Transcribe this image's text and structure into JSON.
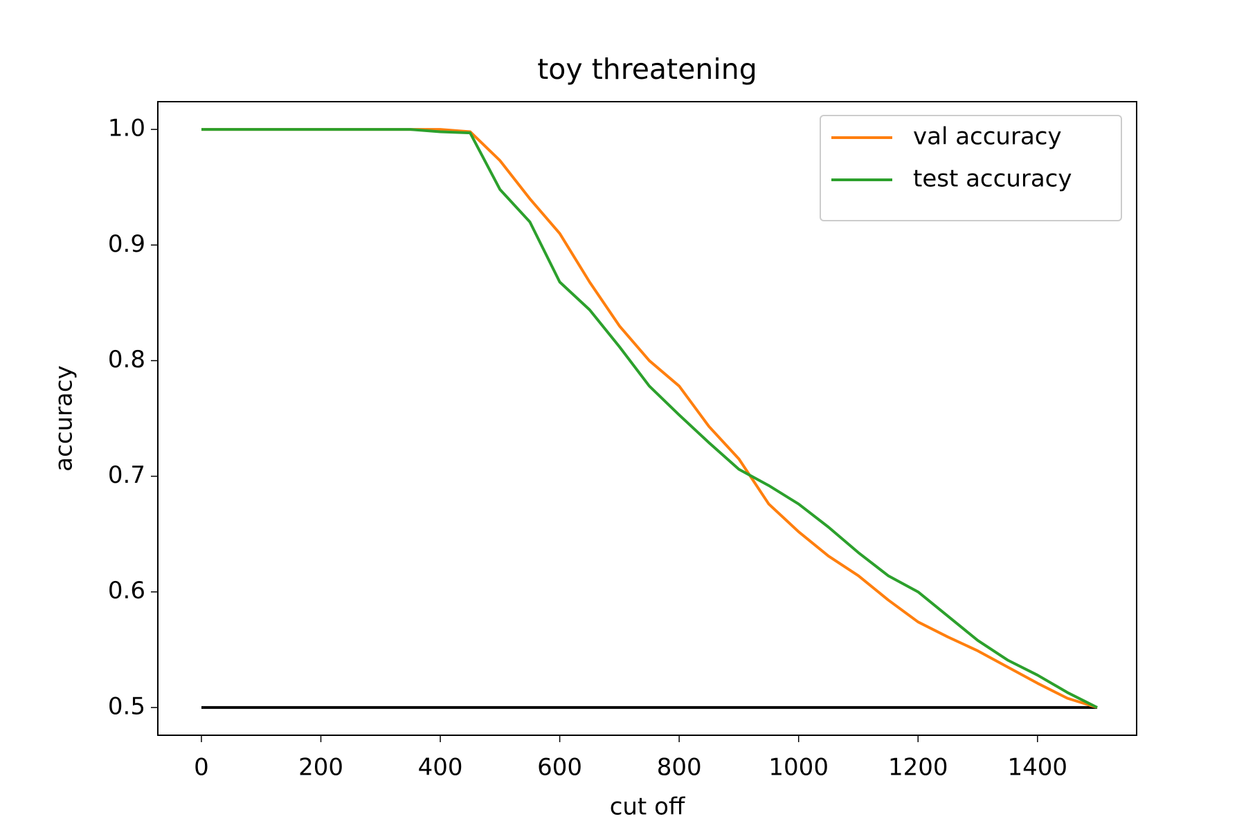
{
  "chart_data": {
    "type": "line",
    "title": "toy threatening",
    "xlabel": "cut off",
    "ylabel": "accuracy",
    "xlim": [
      -73,
      1566
    ],
    "ylim": [
      0.476,
      1.024
    ],
    "xticks": [
      0,
      200,
      400,
      600,
      800,
      1000,
      1200,
      1400
    ],
    "yticks": [
      0.5,
      0.6,
      0.7,
      0.8,
      0.9,
      {
        "value": 1,
        "label": "1.0"
      }
    ],
    "legend": "upper right",
    "series": [
      {
        "name": "val accuracy",
        "color": "#ff7f0e",
        "x": [
          0,
          50,
          100,
          150,
          200,
          250,
          300,
          350,
          400,
          450,
          500,
          550,
          600,
          650,
          700,
          750,
          800,
          850,
          900,
          950,
          1000,
          1050,
          1100,
          1150,
          1200,
          1250,
          1300,
          1350,
          1400,
          1450,
          1500
        ],
        "values": [
          1,
          1,
          1,
          1,
          1,
          1,
          1,
          1,
          1,
          0.998,
          0.973,
          0.94,
          0.91,
          0.868,
          0.83,
          0.8,
          0.778,
          0.743,
          0.715,
          0.676,
          0.652,
          0.631,
          0.614,
          0.593,
          0.574,
          0.561,
          0.549,
          0.535,
          0.521,
          0.508,
          0.5
        ]
      },
      {
        "name": "test accuracy",
        "color": "#2ca02c",
        "x": [
          0,
          50,
          100,
          150,
          200,
          250,
          300,
          350,
          400,
          450,
          500,
          550,
          600,
          650,
          700,
          750,
          800,
          850,
          900,
          950,
          1000,
          1050,
          1100,
          1150,
          1200,
          1250,
          1300,
          1350,
          1400,
          1450,
          1500
        ],
        "values": [
          1,
          1,
          1,
          1,
          1,
          1,
          1,
          1,
          0.998,
          0.997,
          0.948,
          0.92,
          0.868,
          0.844,
          0.812,
          0.778,
          0.753,
          0.729,
          0.706,
          0.692,
          0.676,
          0.656,
          0.634,
          0.614,
          0.6,
          0.579,
          0.558,
          0.541,
          0.528,
          0.513,
          0.5
        ]
      },
      {
        "color": "#000000",
        "x": [
          0,
          1500
        ],
        "values": [
          0.5,
          0.5
        ]
      }
    ]
  }
}
